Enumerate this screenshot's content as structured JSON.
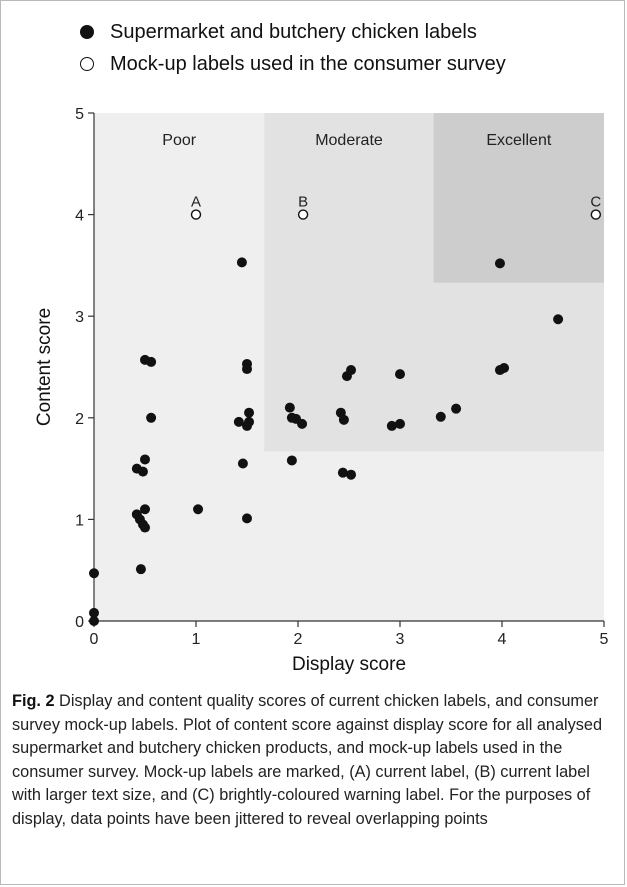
{
  "legend": {
    "items": [
      {
        "label": "Supermarket and butchery chicken labels",
        "marker": "filled"
      },
      {
        "label": "Mock-up labels used in the consumer survey",
        "marker": "open"
      }
    ]
  },
  "chart_data": {
    "type": "scatter",
    "xlabel": "Display score",
    "ylabel": "Content score",
    "xlim": [
      0,
      5
    ],
    "ylim": [
      0,
      5
    ],
    "xticks": [
      "0",
      "1",
      "2",
      "3",
      "4",
      "5"
    ],
    "yticks": [
      "0",
      "1",
      "2",
      "3",
      "4",
      "5"
    ],
    "grid": false,
    "regions": [
      {
        "label": "Poor",
        "x": [
          0,
          5
        ],
        "y": [
          0,
          5
        ],
        "color": "#efefef"
      },
      {
        "label": "Moderate",
        "x": [
          1.67,
          5
        ],
        "y": [
          1.67,
          5
        ],
        "color": "#e2e2e2"
      },
      {
        "label": "Excellent",
        "x": [
          3.33,
          5
        ],
        "y": [
          3.33,
          5
        ],
        "color": "#cdcdcd"
      }
    ],
    "series": [
      {
        "name": "Supermarket and butchery chicken labels",
        "marker": "filled",
        "points": [
          [
            0.0,
            0.47
          ],
          [
            0.0,
            0.08
          ],
          [
            0.0,
            0.0
          ],
          [
            0.42,
            1.5
          ],
          [
            0.48,
            1.47
          ],
          [
            0.5,
            1.59
          ],
          [
            0.5,
            2.57
          ],
          [
            0.56,
            2.55
          ],
          [
            0.56,
            2.0
          ],
          [
            0.42,
            1.05
          ],
          [
            0.45,
            1.0
          ],
          [
            0.5,
            1.1
          ],
          [
            0.48,
            0.95
          ],
          [
            0.5,
            0.92
          ],
          [
            0.46,
            0.51
          ],
          [
            1.02,
            1.1
          ],
          [
            1.45,
            3.53
          ],
          [
            1.5,
            2.53
          ],
          [
            1.5,
            2.48
          ],
          [
            1.52,
            2.05
          ],
          [
            1.42,
            1.96
          ],
          [
            1.52,
            1.96
          ],
          [
            1.5,
            1.92
          ],
          [
            1.46,
            1.55
          ],
          [
            1.5,
            1.01
          ],
          [
            1.92,
            2.1
          ],
          [
            1.94,
            2.0
          ],
          [
            1.98,
            1.99
          ],
          [
            2.04,
            1.94
          ],
          [
            1.94,
            1.58
          ],
          [
            2.42,
            2.05
          ],
          [
            2.45,
            1.98
          ],
          [
            2.48,
            2.41
          ],
          [
            2.52,
            2.47
          ],
          [
            2.44,
            1.46
          ],
          [
            2.52,
            1.44
          ],
          [
            2.92,
            1.92
          ],
          [
            3.0,
            1.94
          ],
          [
            3.0,
            2.43
          ],
          [
            3.4,
            2.01
          ],
          [
            3.55,
            2.09
          ],
          [
            3.98,
            3.52
          ],
          [
            3.98,
            2.47
          ],
          [
            4.02,
            2.49
          ],
          [
            4.55,
            2.97
          ]
        ]
      },
      {
        "name": "Mock-up labels used in the consumer survey",
        "marker": "open",
        "points": [
          {
            "x": 1.0,
            "y": 4.0,
            "label": "A"
          },
          {
            "x": 2.05,
            "y": 4.0,
            "label": "B"
          },
          {
            "x": 4.92,
            "y": 4.0,
            "label": "C"
          }
        ]
      }
    ]
  },
  "caption": {
    "fig_label": "Fig. 2",
    "text": " Display and content quality scores of current chicken labels, and consumer survey mock-up labels. Plot of content score against display score for all analysed supermarket and butchery chicken products, and mock-up labels used in the consumer survey. Mock-up labels are marked, (A) current label, (B) current label with larger text size, and (C) brightly-coloured warning label. For the purposes of display, data points have been jittered to reveal overlapping points"
  }
}
